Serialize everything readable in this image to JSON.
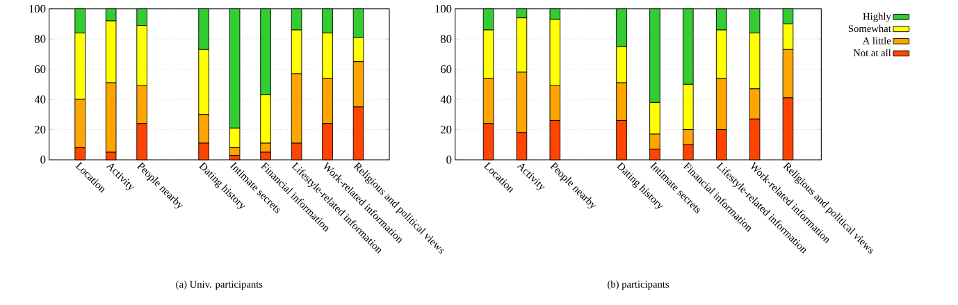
{
  "chart_data": [
    {
      "type": "bar",
      "stacked": true,
      "categories": [
        "Location",
        "Activity",
        "People nearby",
        null,
        "Dating history",
        "Intimate secrets",
        "Financial information",
        "Lifestyle-related information",
        "Work-related information",
        "Religious and political views"
      ],
      "ylim": [
        0,
        100
      ],
      "yticks": [
        0,
        20,
        40,
        60,
        80,
        100
      ],
      "grid": "y",
      "legend": false,
      "annotations": [
        "(a) Univ. participants"
      ],
      "series": [
        {
          "color": "#ff4500",
          "values": [
            8,
            5,
            24,
            null,
            11,
            3,
            5,
            11,
            24,
            35
          ]
        },
        {
          "color": "#ffa500",
          "values": [
            32,
            46,
            25,
            null,
            19,
            5,
            6,
            46,
            30,
            30
          ]
        },
        {
          "color": "#ffff00",
          "values": [
            44,
            41,
            40,
            null,
            43,
            13,
            32,
            29,
            30,
            16
          ]
        },
        {
          "color": "#33cc33",
          "values": [
            16,
            8,
            11,
            null,
            27,
            79,
            57,
            14,
            16,
            19
          ]
        }
      ]
    },
    {
      "type": "bar",
      "stacked": true,
      "categories": [
        "Location",
        "Activity",
        "People nearby",
        null,
        "Dating history",
        "Intimate secrets",
        "Financial information",
        "Lifestyle-related information",
        "Work-related information",
        "Religious and political views"
      ],
      "ylim": [
        0,
        100
      ],
      "yticks": [
        0,
        20,
        40,
        60,
        80,
        100
      ],
      "grid": "y",
      "legend": "right",
      "annotations": [
        "(b) participants"
      ],
      "series": [
        {
          "name": "Not at all",
          "color": "#ff4500",
          "values": [
            24,
            18,
            26,
            null,
            26,
            7,
            10,
            20,
            27,
            41
          ]
        },
        {
          "name": "A little",
          "color": "#ffa500",
          "values": [
            30,
            40,
            23,
            null,
            25,
            10,
            10,
            34,
            20,
            32
          ]
        },
        {
          "name": "Somewhat",
          "color": "#ffff00",
          "values": [
            32,
            36,
            44,
            null,
            24,
            21,
            30,
            32,
            37,
            17
          ]
        },
        {
          "name": "Highly",
          "color": "#33cc33",
          "values": [
            14,
            6,
            7,
            null,
            25,
            62,
            50,
            14,
            16,
            10
          ]
        }
      ]
    }
  ]
}
